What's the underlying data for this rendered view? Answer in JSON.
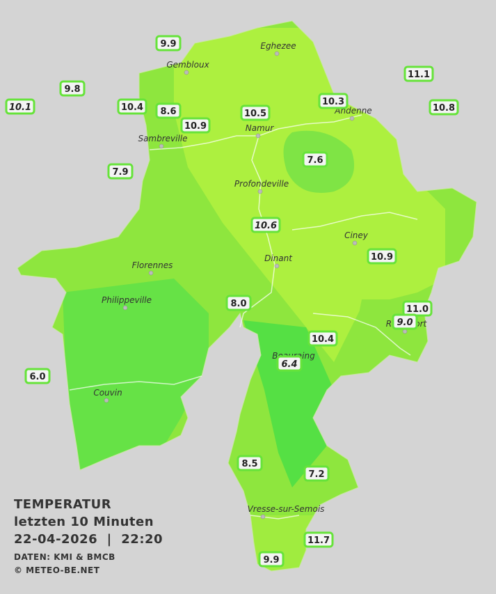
{
  "title": "TEMPERATUR",
  "subtitle": "letzten 10 Minuten",
  "datetime": "22-04-2026  |  22:20",
  "source": "DATEN: KMI & BMCB",
  "copyright": "© METEO-BE.NET",
  "cities": [
    "Eghezee",
    "Gembloux",
    "Andenne",
    "Namur",
    "Sambreville",
    "Profondeville",
    "Ciney",
    "Dinant",
    "Florennes",
    "Philippeville",
    "Rochefort",
    "Beauraing",
    "Couvin",
    "Vresse-sur-Semois"
  ],
  "stations": [
    "9.9",
    "9.8",
    "10.1",
    "10.4",
    "8.6",
    "10.9",
    "10.5",
    "10.3",
    "11.1",
    "10.8",
    "7.9",
    "7.6",
    "10.6",
    "10.9",
    "8.0",
    "11.0",
    "9.0",
    "10.4",
    "6.4",
    "6.0",
    "8.5",
    "7.2",
    "11.7",
    "9.9"
  ]
}
